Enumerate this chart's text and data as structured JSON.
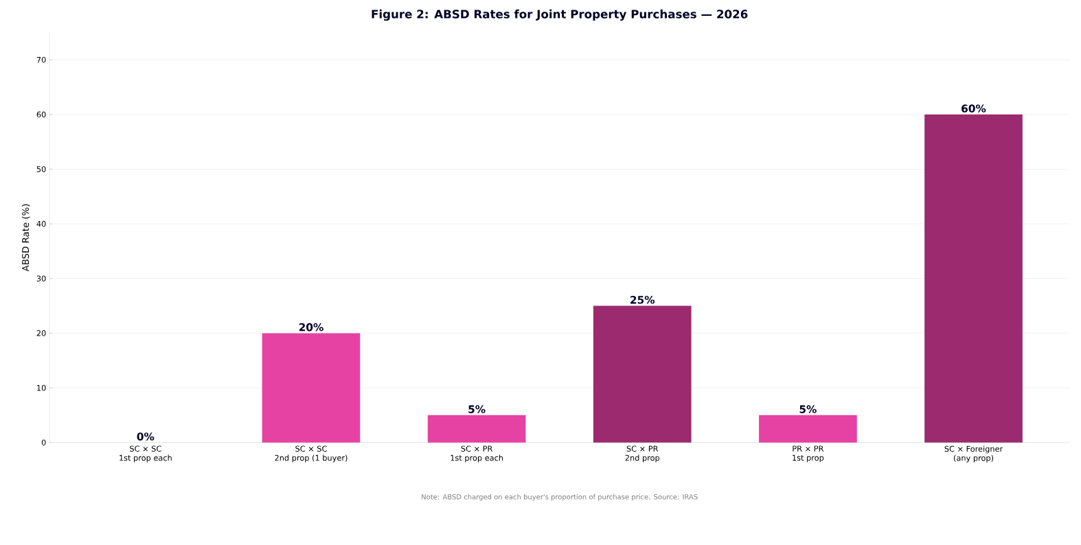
{
  "chart_data": {
    "type": "bar",
    "title": "Figure 2: ABSD Rates for Joint Property Purchases — 2026",
    "ylabel": "ABSD Rate (%)",
    "categories": [
      "SC × SC\n1st prop each",
      "SC × SC\n2nd prop (1 buyer)",
      "SC × PR\n1st prop each",
      "SC × PR\n2nd prop",
      "PR × PR\n1st prop",
      "SC × Foreigner\n(any prop)"
    ],
    "values": [
      0,
      20,
      5,
      25,
      5,
      60
    ],
    "colors": [
      "#e542a3",
      "#e542a3",
      "#e542a3",
      "#9b2a6f",
      "#e542a3",
      "#9b2a6f"
    ],
    "value_labels": [
      "0%",
      "20%",
      "5%",
      "25%",
      "5%",
      "60%"
    ],
    "ylim": [
      0,
      75
    ],
    "yticks": [
      0,
      10,
      20,
      30,
      40,
      50,
      60,
      70
    ],
    "grid": "y",
    "annotations": [
      "Note: ABSD charged on each buyer's proportion of purchase price. Source: IRAS"
    ]
  }
}
